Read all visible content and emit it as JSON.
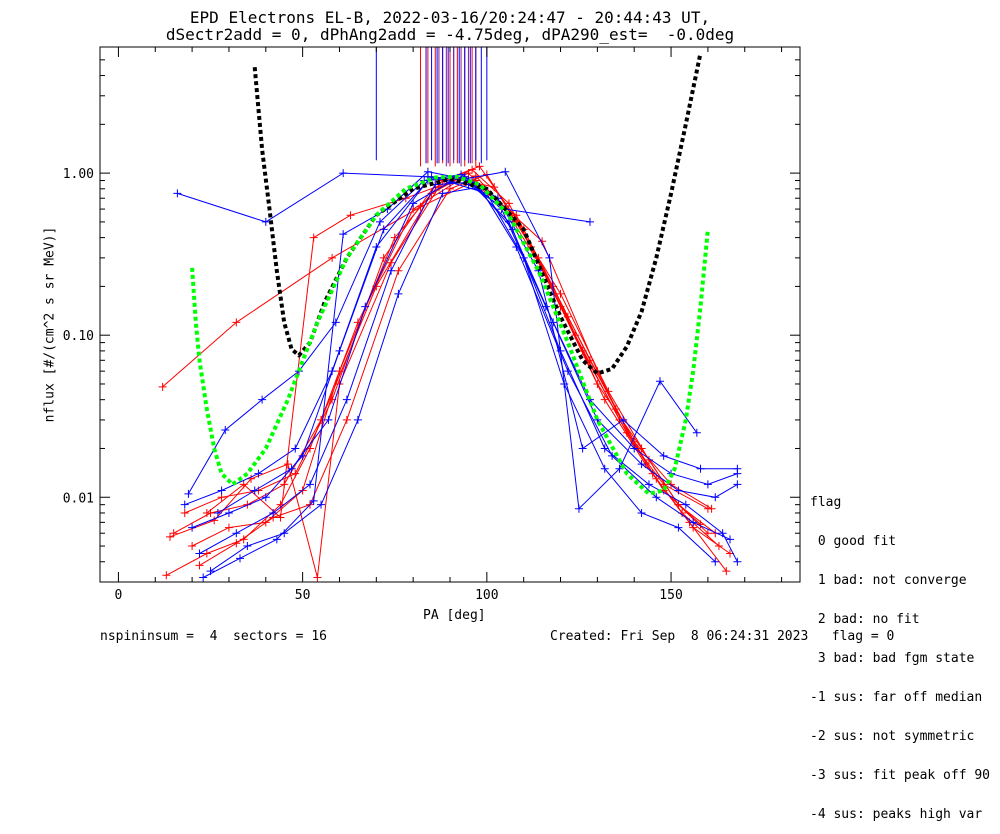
{
  "chart_data": {
    "type": "line",
    "title": "EPD Electrons EL-B, 2022-03-16/20:24:47 - 20:44:43 UT,",
    "subtitle": "dSectr2add = 0, dPhAng2add = -4.75deg, dPA290_est=  -0.0deg",
    "xlabel": "PA [deg]",
    "ylabel": "nflux [#/(cm^2 s sr MeV)]",
    "xlim": [
      -5,
      185
    ],
    "ylim": [
      0.003,
      6.0
    ],
    "yscale": "log",
    "xticks": [
      0,
      50,
      100,
      150
    ],
    "yticks": [
      {
        "value": 1.0,
        "label": "1.00"
      },
      {
        "value": 0.1,
        "label": "0.10"
      },
      {
        "value": 0.01,
        "label": "0.01"
      }
    ],
    "legend_title": "flag",
    "legend_items": [
      " 0 good fit",
      " 1 bad: not converge",
      " 2 bad: no fit",
      " 3 bad: bad fgm state",
      "-1 sus: far off median",
      "-2 sus: not symmetric",
      "-3 sus: fit peak off 90",
      "-4 sus: peaks high var"
    ],
    "colors": {
      "red": "#ff0000",
      "blue": "#0000ff",
      "purple": "#8b1a8b",
      "green": "#00ff00",
      "black": "#000000"
    },
    "series": [
      {
        "name": "red-1",
        "color": "#ff0000",
        "x": [
          12,
          32,
          58,
          82,
          97,
          115,
          130,
          140,
          148,
          160
        ],
        "y": [
          0.048,
          0.12,
          0.3,
          0.62,
          0.9,
          0.38,
          0.06,
          0.021,
          0.012,
          0.0085
        ]
      },
      {
        "name": "red-2",
        "color": "#ff0000",
        "x": [
          13,
          24,
          34,
          44,
          52,
          65,
          80,
          94,
          108,
          122,
          135,
          145,
          155,
          165
        ],
        "y": [
          0.0033,
          0.0045,
          0.0055,
          0.009,
          0.02,
          0.12,
          0.6,
          0.95,
          0.55,
          0.13,
          0.035,
          0.014,
          0.007,
          0.0035
        ]
      },
      {
        "name": "red-3",
        "color": "#ff0000",
        "x": [
          15,
          25,
          35,
          45,
          55,
          70,
          85,
          95,
          105,
          118,
          130,
          142,
          152,
          162
        ],
        "y": [
          0.006,
          0.008,
          0.009,
          0.012,
          0.03,
          0.2,
          0.75,
          1.0,
          0.6,
          0.2,
          0.05,
          0.02,
          0.009,
          0.006
        ]
      },
      {
        "name": "red-4",
        "color": "#ff0000",
        "x": [
          18,
          28,
          38,
          48,
          58,
          72,
          86,
          96,
          106,
          120,
          132,
          143,
          153,
          163
        ],
        "y": [
          0.008,
          0.01,
          0.011,
          0.014,
          0.04,
          0.3,
          0.85,
          1.05,
          0.65,
          0.15,
          0.04,
          0.016,
          0.008,
          0.005
        ]
      },
      {
        "name": "red-5",
        "color": "#ff0000",
        "x": [
          20,
          30,
          40,
          50,
          60,
          75,
          88,
          98,
          110,
          124,
          136,
          146,
          156,
          166
        ],
        "y": [
          0.005,
          0.0065,
          0.007,
          0.011,
          0.06,
          0.4,
          0.9,
          1.1,
          0.45,
          0.1,
          0.03,
          0.013,
          0.0065,
          0.0045
        ]
      },
      {
        "name": "red-6",
        "color": "#ff0000",
        "x": [
          22,
          32,
          42,
          52,
          62,
          76,
          90,
          100,
          112,
          126,
          138,
          148,
          158
        ],
        "y": [
          0.0038,
          0.0052,
          0.0075,
          0.009,
          0.03,
          0.25,
          0.8,
          0.98,
          0.35,
          0.08,
          0.025,
          0.011,
          0.0068
        ]
      },
      {
        "name": "red-7",
        "color": "#ff0000",
        "x": [
          14,
          26,
          36,
          46,
          54,
          60,
          74,
          87,
          97,
          108,
          120,
          133,
          144,
          152,
          160
        ],
        "y": [
          0.0057,
          0.0072,
          0.013,
          0.016,
          0.0032,
          0.05,
          0.28,
          0.82,
          0.96,
          0.5,
          0.18,
          0.045,
          0.017,
          0.009,
          0.006
        ]
      },
      {
        "name": "red-8",
        "color": "#ff0000",
        "x": [
          24,
          34,
          44,
          53,
          63,
          78,
          92,
          102,
          114,
          128,
          140,
          150,
          161
        ],
        "y": [
          0.008,
          0.012,
          0.0075,
          0.4,
          0.55,
          0.7,
          0.92,
          0.82,
          0.3,
          0.07,
          0.022,
          0.012,
          0.0085
        ]
      },
      {
        "name": "blue-1",
        "color": "#0000ff",
        "x": [
          16,
          40,
          61,
          84,
          95,
          105,
          128
        ],
        "y": [
          0.75,
          0.5,
          1.0,
          0.95,
          0.85,
          0.6,
          0.5
        ]
      },
      {
        "name": "blue-2",
        "color": "#0000ff",
        "x": [
          18,
          28,
          38,
          48,
          58,
          70,
          84,
          94,
          104,
          116,
          128,
          140,
          150,
          160,
          168
        ],
        "y": [
          0.009,
          0.011,
          0.014,
          0.02,
          0.06,
          0.35,
          0.9,
          0.95,
          0.6,
          0.15,
          0.04,
          0.02,
          0.014,
          0.012,
          0.014
        ]
      },
      {
        "name": "blue-3",
        "color": "#0000ff",
        "x": [
          20,
          30,
          40,
          50,
          60,
          72,
          85,
          95,
          106,
          118,
          130,
          142,
          152,
          162,
          168
        ],
        "y": [
          0.0065,
          0.008,
          0.01,
          0.018,
          0.08,
          0.45,
          0.95,
          0.9,
          0.5,
          0.12,
          0.03,
          0.016,
          0.011,
          0.01,
          0.012
        ]
      },
      {
        "name": "blue-4",
        "color": "#0000ff",
        "x": [
          22,
          32,
          42,
          52,
          62,
          74,
          86,
          96,
          107,
          120,
          132,
          144,
          154,
          164,
          168
        ],
        "y": [
          0.0045,
          0.006,
          0.008,
          0.012,
          0.04,
          0.25,
          0.85,
          0.88,
          0.45,
          0.08,
          0.02,
          0.012,
          0.009,
          0.006,
          0.004
        ]
      },
      {
        "name": "blue-5",
        "color": "#0000ff",
        "x": [
          25,
          35,
          45,
          55,
          65,
          76,
          88,
          98,
          108,
          122,
          134,
          146,
          156,
          166
        ],
        "y": [
          0.0035,
          0.005,
          0.006,
          0.009,
          0.03,
          0.18,
          0.75,
          0.82,
          0.35,
          0.06,
          0.018,
          0.01,
          0.007,
          0.0055
        ]
      },
      {
        "name": "blue-6",
        "color": "#0000ff",
        "x": [
          19,
          29,
          39,
          49,
          59,
          71,
          83,
          93,
          103,
          114,
          126,
          137,
          148,
          158,
          168
        ],
        "y": [
          0.0105,
          0.026,
          0.04,
          0.06,
          0.12,
          0.5,
          0.9,
          0.98,
          0.7,
          0.25,
          0.02,
          0.03,
          0.018,
          0.015,
          0.015
        ]
      },
      {
        "name": "blue-7",
        "color": "#0000ff",
        "x": [
          23,
          33,
          43,
          53,
          61,
          73,
          84,
          94,
          105,
          117,
          125,
          136,
          147,
          157
        ],
        "y": [
          0.0032,
          0.0042,
          0.0055,
          0.0095,
          0.42,
          0.6,
          1.02,
          0.92,
          1.02,
          0.3,
          0.0085,
          0.015,
          0.052,
          0.025
        ]
      },
      {
        "name": "blue-8",
        "color": "#0000ff",
        "x": [
          27,
          37,
          47,
          57,
          67,
          80,
          90,
          100,
          110,
          121,
          132,
          142,
          152,
          162
        ],
        "y": [
          0.008,
          0.011,
          0.015,
          0.03,
          0.15,
          0.65,
          0.88,
          0.75,
          0.3,
          0.05,
          0.015,
          0.008,
          0.0065,
          0.004
        ]
      }
    ],
    "spikes": {
      "top_of_plot": true,
      "blue_x": [
        70,
        83.5,
        85,
        86.5,
        88,
        89.5,
        91,
        92.5,
        94,
        95.5,
        97,
        98.5,
        100
      ],
      "blue_bottom": [
        1.2,
        1.15,
        1.2,
        1.15,
        1.2,
        1.15,
        1.2,
        1.15,
        1.2,
        1.15,
        1.2,
        1.15,
        1.2
      ],
      "red_x": [
        82,
        84,
        86,
        88,
        90,
        92,
        94,
        96,
        97
      ],
      "red_bottom": [
        1.1,
        1.15,
        1.1,
        1.15,
        1.1,
        1.15,
        1.1,
        1.15,
        1.1
      ],
      "purple_x": [
        87,
        89,
        91,
        93,
        95
      ],
      "purple_bottom": [
        1.15,
        1.1,
        1.15,
        1.1,
        1.15
      ]
    },
    "fits": [
      {
        "name": "black-fit",
        "color": "#000000",
        "x": [
          37,
          39,
          41,
          43,
          45,
          47,
          49,
          52,
          56,
          62,
          70,
          80,
          90,
          100,
          110,
          120,
          126,
          130,
          134,
          138,
          142,
          146,
          150,
          154,
          158
        ],
        "y": [
          4.5,
          1.4,
          0.6,
          0.25,
          0.12,
          0.082,
          0.075,
          0.09,
          0.16,
          0.3,
          0.55,
          0.8,
          0.92,
          0.8,
          0.45,
          0.13,
          0.07,
          0.058,
          0.062,
          0.085,
          0.14,
          0.3,
          0.75,
          2.0,
          5.5
        ]
      },
      {
        "name": "green-fit",
        "color": "#00ff00",
        "x": [
          20,
          21,
          22,
          24,
          26,
          28,
          31,
          35,
          40,
          46,
          54,
          62,
          70,
          78,
          86,
          92,
          98,
          106,
          114,
          122,
          130,
          138,
          144,
          148,
          151,
          154,
          156,
          158,
          160
        ],
        "y": [
          0.26,
          0.12,
          0.07,
          0.035,
          0.02,
          0.014,
          0.012,
          0.014,
          0.02,
          0.04,
          0.12,
          0.3,
          0.55,
          0.8,
          0.94,
          0.95,
          0.85,
          0.55,
          0.25,
          0.09,
          0.03,
          0.014,
          0.0105,
          0.011,
          0.015,
          0.03,
          0.06,
          0.15,
          0.45
        ]
      }
    ]
  },
  "footer": {
    "left": "nspininsum =  4  sectors = 16",
    "right": "Created: Fri Sep  8 06:24:31 2023   flag = 0"
  }
}
